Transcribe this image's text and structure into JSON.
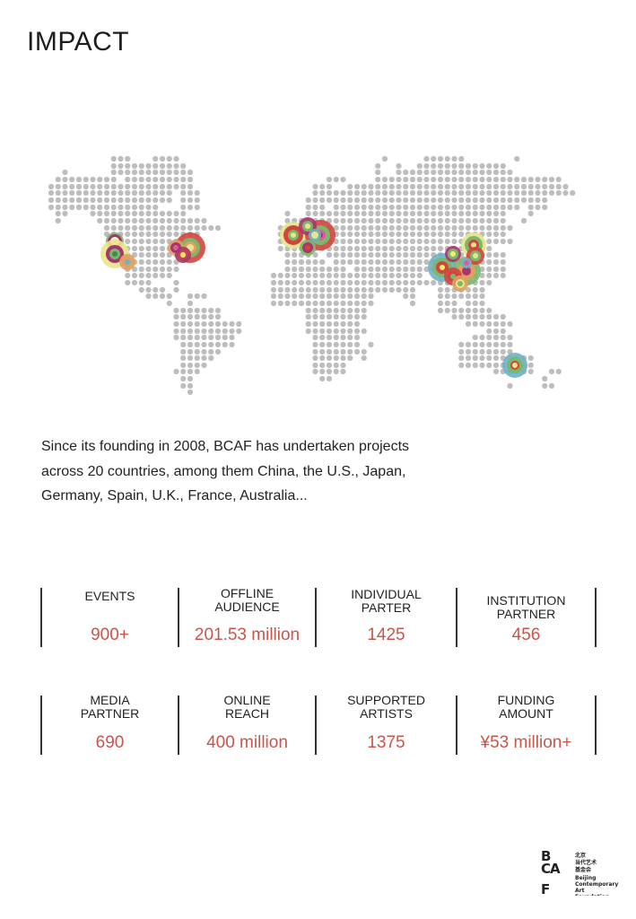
{
  "header": {
    "title": "IMPACT"
  },
  "intro": {
    "lines": [
      "Since its founding in 2008, BCAF has undertaken projects",
      "across 20 countries, among them China, the U.S., Japan,",
      "Germany, Spain, U.K., France, Australia..."
    ]
  },
  "stats": [
    {
      "label": [
        "EVENTS"
      ],
      "value": "900+"
    },
    {
      "label": [
        "OFFLINE",
        "AUDIENCE"
      ],
      "value": "201.53 million"
    },
    {
      "label": [
        "INDIVIDUAL",
        "PARTER"
      ],
      "value": "1425"
    },
    {
      "label": [
        "INSTITUTION",
        "PARTNER"
      ],
      "value": "456"
    },
    {
      "label": [
        "MEDIA",
        "PARTNER"
      ],
      "value": "690"
    },
    {
      "label": [
        "ONLINE",
        "REACH"
      ],
      "value": "400 million"
    },
    {
      "label": [
        "SUPPORTED",
        "ARTISTS"
      ],
      "value": "1375"
    },
    {
      "label": [
        "FUNDING",
        "AMOUNT"
      ],
      "value": "¥53 million+"
    }
  ],
  "logo": {
    "mark": "BCAF",
    "cn": "北京当代艺术基金会",
    "en": [
      "Beijing",
      "Contemporary",
      "Art",
      "Foundation"
    ]
  },
  "colors": {
    "accent": "#c9554a",
    "dot": "#bdbdbd",
    "text": "#222222"
  }
}
